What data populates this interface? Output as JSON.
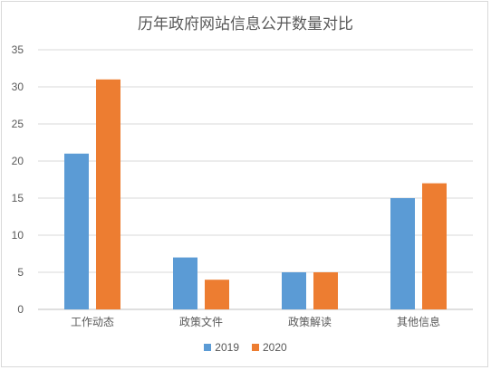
{
  "chart_data": {
    "type": "bar",
    "title": "历年政府网站信息公开数量对比",
    "categories": [
      "工作动态",
      "政策文件",
      "政策解读",
      "其他信息"
    ],
    "series": [
      {
        "name": "2019",
        "values": [
          21,
          7,
          5,
          15
        ],
        "color": "#5b9bd5"
      },
      {
        "name": "2020",
        "values": [
          31,
          4,
          5,
          17
        ],
        "color": "#ed7d31"
      }
    ],
    "ylim": [
      0,
      35
    ],
    "yticks": [
      0,
      5,
      10,
      15,
      20,
      25,
      30,
      35
    ],
    "grid": true,
    "legend_position": "bottom"
  }
}
